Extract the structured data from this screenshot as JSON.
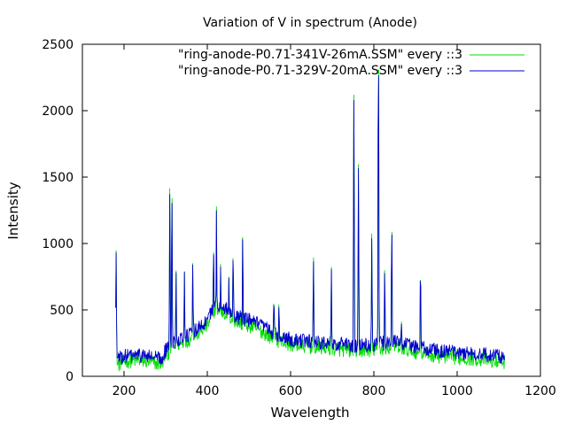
{
  "chart_data": {
    "type": "line",
    "title": "Variation of V in spectrum (Anode)",
    "xlabel": "Wavelength",
    "ylabel": "Intensity",
    "xlim": [
      100,
      1200
    ],
    "ylim": [
      0,
      2500
    ],
    "xticks": [
      200,
      400,
      600,
      800,
      1000,
      1200
    ],
    "yticks": [
      0,
      500,
      1000,
      1500,
      2000,
      2500
    ],
    "grid": false,
    "legend_position": "top-right",
    "baseline_points": [
      [
        180,
        120
      ],
      [
        200,
        150
      ],
      [
        230,
        160
      ],
      [
        260,
        150
      ],
      [
        290,
        130
      ],
      [
        300,
        200
      ],
      [
        330,
        280
      ],
      [
        360,
        320
      ],
      [
        400,
        420
      ],
      [
        420,
        550
      ],
      [
        440,
        520
      ],
      [
        470,
        450
      ],
      [
        500,
        420
      ],
      [
        530,
        380
      ],
      [
        560,
        320
      ],
      [
        600,
        280
      ],
      [
        650,
        260
      ],
      [
        700,
        250
      ],
      [
        750,
        230
      ],
      [
        800,
        240
      ],
      [
        850,
        260
      ],
      [
        880,
        240
      ],
      [
        920,
        210
      ],
      [
        960,
        190
      ],
      [
        1000,
        180
      ],
      [
        1050,
        170
      ],
      [
        1080,
        160
      ],
      [
        1115,
        150
      ]
    ],
    "peaks": [
      [
        181,
        930
      ],
      [
        310,
        1410
      ],
      [
        315,
        1380
      ],
      [
        325,
        800
      ],
      [
        345,
        780
      ],
      [
        365,
        860
      ],
      [
        415,
        1000
      ],
      [
        422,
        1250
      ],
      [
        432,
        830
      ],
      [
        452,
        780
      ],
      [
        462,
        960
      ],
      [
        485,
        1080
      ],
      [
        560,
        630
      ],
      [
        572,
        570
      ],
      [
        655,
        890
      ],
      [
        698,
        800
      ],
      [
        752,
        2080
      ],
      [
        763,
        1560
      ],
      [
        795,
        1050
      ],
      [
        811,
        2490
      ],
      [
        826,
        820
      ],
      [
        843,
        1120
      ],
      [
        866,
        440
      ],
      [
        912,
        830
      ]
    ],
    "series": [
      {
        "name": "\"ring-anode-P0.71-341V-26mA.SSM\" every ::3",
        "color": "#00dd00",
        "x_range": [
          180,
          1115
        ],
        "baseline_offset": -40,
        "peak_scale": 1.02
      },
      {
        "name": "\"ring-anode-P0.71-329V-20mA.SSM\" every ::3",
        "color": "#0000cc",
        "x_range": [
          180,
          1115
        ],
        "baseline_offset": 0,
        "peak_scale": 1.0
      }
    ]
  }
}
